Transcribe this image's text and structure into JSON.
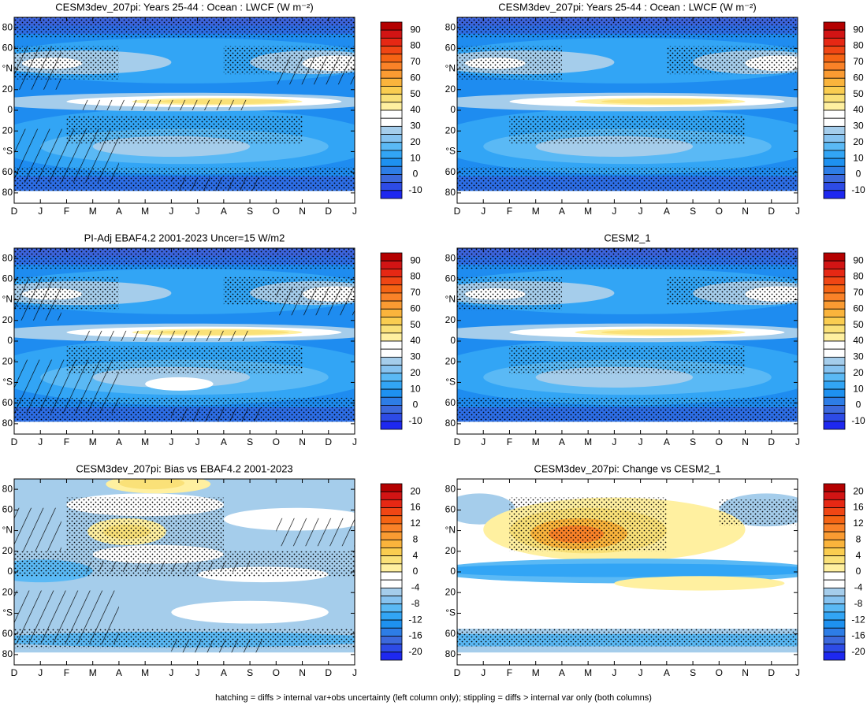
{
  "chart_data": [
    {
      "type": "contour",
      "title": "CESM3dev_207pi: Years 25-44 : Ocean : LWCF (W m⁻²)",
      "categories": [
        "D",
        "J",
        "F",
        "M",
        "A",
        "M",
        "J",
        "J",
        "A",
        "S",
        "O",
        "N",
        "D",
        "J"
      ],
      "ylim": [
        -90,
        90
      ],
      "yticks": [
        80,
        60,
        {
          "value": 40,
          "label": "°N"
        },
        20,
        0,
        {
          "value": -20,
          "label": "20"
        },
        {
          "value": -40,
          "label": "°S"
        },
        {
          "value": -60,
          "label": "60"
        },
        {
          "value": -80,
          "label": "80"
        }
      ],
      "hatching": true,
      "colorbar": {
        "lim": [
          -15,
          95
        ],
        "ticks": [
          90,
          80,
          70,
          60,
          50,
          40,
          30,
          20,
          10,
          0,
          -10
        ],
        "colors": [
          "#b40000",
          "#d21414",
          "#e62814",
          "#f04614",
          "#f56414",
          "#fa8228",
          "#fa9b32",
          "#fab43c",
          "#facd50",
          "#fae178",
          "#fff0a0",
          "#ffffff",
          "#ffffff",
          "#a5cdeb",
          "#87c3f0",
          "#5ab9f5",
          "#32a5f5",
          "#1e91f0",
          "#2d7de6",
          "#3c69dc",
          "#2d4be6",
          "#1e28f0"
        ]
      }
    },
    {
      "type": "contour",
      "title": "CESM3dev_207pi: Years 25-44 : Ocean : LWCF (W m⁻²)",
      "categories": [
        "D",
        "J",
        "F",
        "M",
        "A",
        "M",
        "J",
        "J",
        "A",
        "S",
        "O",
        "N",
        "D",
        "J"
      ],
      "ylim": [
        -90,
        90
      ],
      "yticks": [
        80,
        60,
        {
          "value": 40,
          "label": "°N"
        },
        20,
        0,
        {
          "value": -20,
          "label": "20"
        },
        {
          "value": -40,
          "label": "°S"
        },
        {
          "value": -60,
          "label": "60"
        },
        {
          "value": -80,
          "label": "80"
        }
      ],
      "hatching": false,
      "colorbar": {
        "lim": [
          -15,
          95
        ],
        "ticks": [
          90,
          80,
          70,
          60,
          50,
          40,
          30,
          20,
          10,
          0,
          -10
        ],
        "colors": [
          "#b40000",
          "#d21414",
          "#e62814",
          "#f04614",
          "#f56414",
          "#fa8228",
          "#fa9b32",
          "#fab43c",
          "#facd50",
          "#fae178",
          "#fff0a0",
          "#ffffff",
          "#ffffff",
          "#a5cdeb",
          "#87c3f0",
          "#5ab9f5",
          "#32a5f5",
          "#1e91f0",
          "#2d7de6",
          "#3c69dc",
          "#2d4be6",
          "#1e28f0"
        ]
      }
    },
    {
      "type": "contour",
      "title": "PI-Adj EBAF4.2 2001-2023 Uncer=15 W/m2",
      "categories": [
        "D",
        "J",
        "F",
        "M",
        "A",
        "M",
        "J",
        "J",
        "A",
        "S",
        "O",
        "N",
        "D",
        "J"
      ],
      "ylim": [
        -90,
        90
      ],
      "yticks": [
        80,
        60,
        {
          "value": 40,
          "label": "°N"
        },
        20,
        0,
        {
          "value": -20,
          "label": "20"
        },
        {
          "value": -40,
          "label": "°S"
        },
        {
          "value": -60,
          "label": "60"
        },
        {
          "value": -80,
          "label": "80"
        }
      ],
      "hatching": true,
      "colorbar": {
        "lim": [
          -15,
          95
        ],
        "ticks": [
          90,
          80,
          70,
          60,
          50,
          40,
          30,
          20,
          10,
          0,
          -10
        ],
        "colors": [
          "#b40000",
          "#d21414",
          "#e62814",
          "#f04614",
          "#f56414",
          "#fa8228",
          "#fa9b32",
          "#fab43c",
          "#facd50",
          "#fae178",
          "#fff0a0",
          "#ffffff",
          "#ffffff",
          "#a5cdeb",
          "#87c3f0",
          "#5ab9f5",
          "#32a5f5",
          "#1e91f0",
          "#2d7de6",
          "#3c69dc",
          "#2d4be6",
          "#1e28f0"
        ]
      }
    },
    {
      "type": "contour",
      "title": "CESM2_1",
      "categories": [
        "D",
        "J",
        "F",
        "M",
        "A",
        "M",
        "J",
        "J",
        "A",
        "S",
        "O",
        "N",
        "D",
        "J"
      ],
      "ylim": [
        -90,
        90
      ],
      "yticks": [
        80,
        60,
        {
          "value": 40,
          "label": "°N"
        },
        20,
        0,
        {
          "value": -20,
          "label": "20"
        },
        {
          "value": -40,
          "label": "°S"
        },
        {
          "value": -60,
          "label": "60"
        },
        {
          "value": -80,
          "label": "80"
        }
      ],
      "hatching": false,
      "colorbar": {
        "lim": [
          -15,
          95
        ],
        "ticks": [
          90,
          80,
          70,
          60,
          50,
          40,
          30,
          20,
          10,
          0,
          -10
        ],
        "colors": [
          "#b40000",
          "#d21414",
          "#e62814",
          "#f04614",
          "#f56414",
          "#fa8228",
          "#fa9b32",
          "#fab43c",
          "#facd50",
          "#fae178",
          "#fff0a0",
          "#ffffff",
          "#ffffff",
          "#a5cdeb",
          "#87c3f0",
          "#5ab9f5",
          "#32a5f5",
          "#1e91f0",
          "#2d7de6",
          "#3c69dc",
          "#2d4be6",
          "#1e28f0"
        ]
      }
    },
    {
      "type": "contour",
      "title": "CESM3dev_207pi: Bias vs EBAF4.2 2001-2023",
      "categories": [
        "D",
        "J",
        "F",
        "M",
        "A",
        "M",
        "J",
        "J",
        "A",
        "S",
        "O",
        "N",
        "D",
        "J"
      ],
      "ylim": [
        -90,
        90
      ],
      "yticks": [
        80,
        60,
        {
          "value": 40,
          "label": "°N"
        },
        20,
        0,
        {
          "value": -20,
          "label": "20"
        },
        {
          "value": -40,
          "label": "°S"
        },
        {
          "value": -60,
          "label": "60"
        },
        {
          "value": -80,
          "label": "80"
        }
      ],
      "hatching": true,
      "colorbar": {
        "lim": [
          -22,
          22
        ],
        "ticks": [
          20,
          16,
          12,
          8,
          4,
          0,
          -4,
          -8,
          -12,
          -16,
          -20
        ],
        "colors": [
          "#b40000",
          "#d21414",
          "#e62814",
          "#f04614",
          "#f56414",
          "#fa8228",
          "#fa9b32",
          "#fab43c",
          "#facd50",
          "#fae178",
          "#fff0a0",
          "#ffffff",
          "#ffffff",
          "#a5cdeb",
          "#87c3f0",
          "#5ab9f5",
          "#32a5f5",
          "#1e91f0",
          "#2d7de6",
          "#3c69dc",
          "#2d4be6",
          "#1e28f0"
        ]
      }
    },
    {
      "type": "contour",
      "title": "CESM3dev_207pi: Change vs CESM2_1",
      "categories": [
        "D",
        "J",
        "F",
        "M",
        "A",
        "M",
        "J",
        "J",
        "A",
        "S",
        "O",
        "N",
        "D",
        "J"
      ],
      "ylim": [
        -90,
        90
      ],
      "yticks": [
        80,
        60,
        {
          "value": 40,
          "label": "°N"
        },
        20,
        0,
        {
          "value": -20,
          "label": "20"
        },
        {
          "value": -40,
          "label": "°S"
        },
        {
          "value": -60,
          "label": "60"
        },
        {
          "value": -80,
          "label": "80"
        }
      ],
      "hatching": false,
      "colorbar": {
        "lim": [
          -22,
          22
        ],
        "ticks": [
          20,
          16,
          12,
          8,
          4,
          0,
          -4,
          -8,
          -12,
          -16,
          -20
        ],
        "colors": [
          "#b40000",
          "#d21414",
          "#e62814",
          "#f04614",
          "#f56414",
          "#fa8228",
          "#fa9b32",
          "#fab43c",
          "#facd50",
          "#fae178",
          "#fff0a0",
          "#ffffff",
          "#ffffff",
          "#a5cdeb",
          "#87c3f0",
          "#5ab9f5",
          "#32a5f5",
          "#1e91f0",
          "#2d7de6",
          "#3c69dc",
          "#2d4be6",
          "#1e28f0"
        ]
      }
    }
  ],
  "footer": "hatching = diffs > internal var+obs uncertainty (left column only); stippling = diffs > internal var only (both columns)"
}
